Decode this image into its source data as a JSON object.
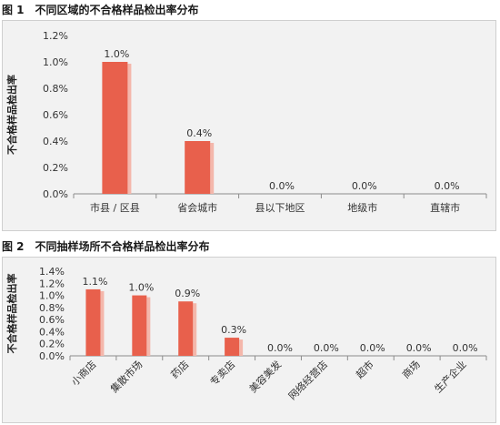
{
  "figures": [
    {
      "title": "图 1　不同区域的不合格样品检出率分布"
    },
    {
      "title": "图 2　不同抽样场所不合格样品检出率分布"
    }
  ],
  "colors": {
    "bar": "#e8604c",
    "bar_shadow": "#f4b7ab",
    "axis": "#8c8c8c",
    "panel_bg": "#f2f2f2"
  },
  "chart_data": [
    {
      "type": "bar",
      "title": "图 1　不同区域的不合格样品检出率分布",
      "categories": [
        "市县 / 区县",
        "省会城市",
        "县以下地区",
        "地级市",
        "直辖市"
      ],
      "values": [
        1.0,
        0.4,
        0.0,
        0.0,
        0.0
      ],
      "data_labels": [
        "1.0%",
        "0.4%",
        "0.0%",
        "0.0%",
        "0.0%"
      ],
      "ylabel": "不合格样品检出率",
      "ylim": [
        0,
        1.2
      ],
      "yticks": [
        "0.0%",
        "0.2%",
        "0.4%",
        "0.6%",
        "0.8%",
        "1.0%",
        "1.2%"
      ],
      "grid": false
    },
    {
      "type": "bar",
      "title": "图 2　不同抽样场所不合格样品检出率分布",
      "categories": [
        "小商店",
        "集散市场",
        "药店",
        "专卖店",
        "美容美发",
        "网络经营店",
        "超市",
        "商场",
        "生产企业"
      ],
      "values": [
        1.1,
        1.0,
        0.9,
        0.3,
        0.0,
        0.0,
        0.0,
        0.0,
        0.0
      ],
      "data_labels": [
        "1.1%",
        "1.0%",
        "0.9%",
        "0.3%",
        "0.0%",
        "0.0%",
        "0.0%",
        "0.0%",
        "0.0%"
      ],
      "ylabel": "不合格样品检出率",
      "ylim": [
        0,
        1.4
      ],
      "yticks": [
        "0.0%",
        "0.2%",
        "0.4%",
        "0.6%",
        "0.8%",
        "1.0%",
        "1.2%",
        "1.4%"
      ],
      "grid": false
    }
  ]
}
